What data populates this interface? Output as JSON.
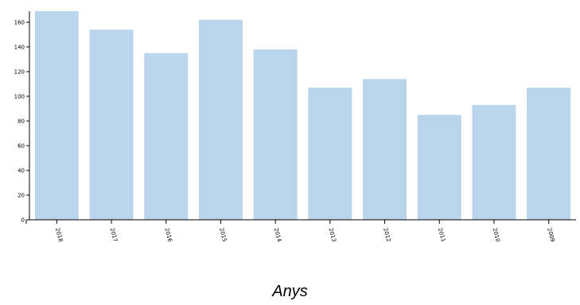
{
  "chart_data": {
    "type": "bar",
    "categories": [
      "2018",
      "2017",
      "2016",
      "2015",
      "2014",
      "2013",
      "2012",
      "2011",
      "2010",
      "2009"
    ],
    "values": [
      169,
      154,
      135,
      162,
      138,
      107,
      114,
      85,
      93,
      107
    ],
    "yticks": [
      0,
      20,
      40,
      60,
      80,
      100,
      120,
      140,
      160
    ],
    "ylim": [
      0,
      169
    ],
    "xlabel": "Anys",
    "ylabel": "",
    "title": "",
    "bar_color": "#bad4ec",
    "axis_color": "#000000",
    "grid": false
  }
}
